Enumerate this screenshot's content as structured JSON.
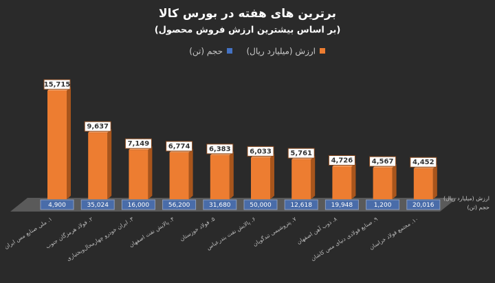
{
  "chart_data": {
    "type": "bar3d",
    "title": "برترین های هفته در بورس کالا",
    "subtitle": "(بر اساس بیشترین ارزش فروش محصول)",
    "categories": [
      "۱. ملی صنایع مس ایران",
      "۲. فولاد هرمزگان جنوب",
      "۳. ایران خودرو چهارمحال‌وبختیاری",
      "۴. پالایش نفت اصفهان",
      "۵. فولاد خوزستان",
      "۶. پالایش نفت بندرعباس",
      "۷. پتروشیمی تندگویان",
      "۸. ذوب آهن اصفهان",
      "۹. صنایع فولادی دنیای مس کاشان",
      "۱۰. مجتمع فولاد خراسان"
    ],
    "series": [
      {
        "name": "ارزش (میلیارد ریال)",
        "row_label": "ارزش (میلیارد ریال)",
        "color": "#ed7d31",
        "values": [
          15715,
          9637,
          7149,
          6774,
          6383,
          6033,
          5761,
          4726,
          4567,
          4452
        ],
        "value_labels": [
          "15,715",
          "9,637",
          "7,149",
          "6,774",
          "6,383",
          "6,033",
          "5,761",
          "4,726",
          "4,567",
          "4,452"
        ]
      },
      {
        "name": "حجم (تن)",
        "row_label": "حجم (تن)",
        "color": "#4472c4",
        "values": [
          4900,
          35024,
          16000,
          56200,
          31680,
          50000,
          12618,
          19948,
          1200,
          20016
        ],
        "value_labels": [
          "4,900",
          "35,024",
          "16,000",
          "56,200",
          "31,680",
          "50,000",
          "12,618",
          "19,948",
          "1,200",
          "20,016"
        ]
      }
    ]
  }
}
